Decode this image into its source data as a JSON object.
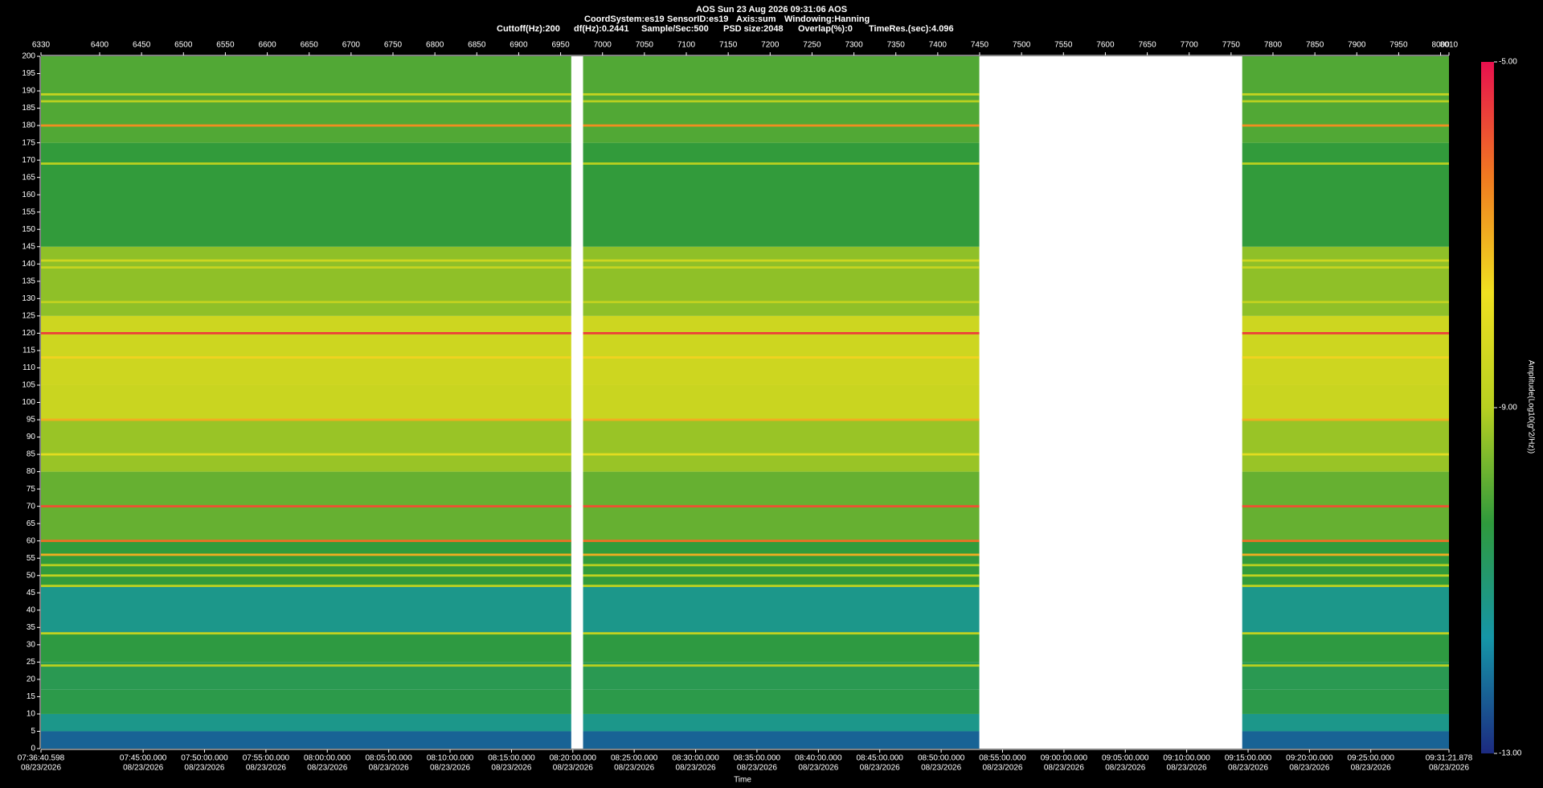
{
  "chart_data": {
    "type": "spectrogram",
    "title": "AOS  Sun 23 Aug 2026 09:31:06  AOS",
    "info_line_1": [
      "CoordSystem:es19",
      "SensorID:es19",
      "Axis:sum",
      "Windowing:Hanning"
    ],
    "info_line_2": [
      "Cuttoff(Hz):200",
      "df(Hz):0.2441",
      "Sample/Sec:500",
      "PSD size:2048",
      "Overlap(%):0",
      "TimeRes.(sec):4.096"
    ],
    "xlabel": "Time",
    "colorbar_label": "Amplitude(Log10(g^2/Hz))",
    "xlim": [
      6330,
      8010
    ],
    "xticks": [
      6330,
      6400,
      6450,
      6500,
      6550,
      6600,
      6650,
      6700,
      6750,
      6800,
      6850,
      6900,
      6950,
      7000,
      7050,
      7100,
      7150,
      7200,
      7250,
      7300,
      7350,
      7400,
      7450,
      7500,
      7550,
      7600,
      7650,
      7700,
      7750,
      7800,
      7850,
      7900,
      7950,
      8000,
      8010
    ],
    "time_date": "08/23/2026",
    "time_ticks": [
      {
        "value": 6330,
        "label": "07:36:40.598"
      },
      {
        "value": 6451.9,
        "label": "07:45:00.000"
      },
      {
        "value": 6525.1,
        "label": "07:50:00.000"
      },
      {
        "value": 6598.4,
        "label": "07:55:00.000"
      },
      {
        "value": 6671.6,
        "label": "08:00:00.000"
      },
      {
        "value": 6744.9,
        "label": "08:05:00.000"
      },
      {
        "value": 6818.1,
        "label": "08:10:00.000"
      },
      {
        "value": 6891.4,
        "label": "08:15:00.000"
      },
      {
        "value": 6964.6,
        "label": "08:20:00.000"
      },
      {
        "value": 7037.8,
        "label": "08:25:00.000"
      },
      {
        "value": 7111.1,
        "label": "08:30:00.000"
      },
      {
        "value": 7184.3,
        "label": "08:35:00.000"
      },
      {
        "value": 7257.6,
        "label": "08:40:00.000"
      },
      {
        "value": 7330.8,
        "label": "08:45:00.000"
      },
      {
        "value": 7404.1,
        "label": "08:50:00.000"
      },
      {
        "value": 7477.3,
        "label": "08:55:00.000"
      },
      {
        "value": 7550.6,
        "label": "09:00:00.000"
      },
      {
        "value": 7623.8,
        "label": "09:05:00.000"
      },
      {
        "value": 7697.0,
        "label": "09:10:00.000"
      },
      {
        "value": 7770.3,
        "label": "09:15:00.000"
      },
      {
        "value": 7843.5,
        "label": "09:20:00.000"
      },
      {
        "value": 7916.7,
        "label": "09:25:00.000"
      },
      {
        "value": 8010,
        "label": "09:31:21.878"
      }
    ],
    "ylim": [
      0,
      200
    ],
    "yticks": [
      0,
      5,
      10,
      15,
      20,
      25,
      30,
      35,
      40,
      45,
      50,
      55,
      60,
      65,
      70,
      75,
      80,
      85,
      90,
      95,
      100,
      105,
      110,
      115,
      120,
      125,
      130,
      135,
      140,
      145,
      150,
      155,
      160,
      165,
      170,
      175,
      180,
      185,
      190,
      195,
      200
    ],
    "clim": [
      -13,
      -5
    ],
    "cticks": [
      {
        "value": -13,
        "label": "-13.00"
      },
      {
        "value": -9,
        "label": "-9.00"
      },
      {
        "value": -5,
        "label": "-5.00"
      }
    ],
    "colormap": [
      "#1c2a80",
      "#1596a8",
      "#2f9a3c",
      "#b8d020",
      "#f0e020",
      "#f07a20",
      "#e8104e"
    ],
    "segments": [
      [
        6330,
        6962.7
      ],
      [
        6976.8,
        7449.6
      ],
      [
        7763.3,
        8010
      ]
    ],
    "freq_bins": [
      0,
      5,
      10,
      17,
      25,
      33,
      47,
      60,
      80,
      95,
      105,
      125,
      145,
      175,
      200
    ],
    "amplitude": [
      -12.3,
      -11.3,
      -10.5,
      -10.6,
      -10.4,
      -11.3,
      -10.3,
      -9.8,
      -9.3,
      -8.6,
      -8.5,
      -9.4,
      -10.3,
      -10.0
    ],
    "tones": {
      "freq": [
        24,
        33.3,
        47,
        50,
        53,
        56,
        60,
        70,
        85,
        95,
        113,
        120,
        129,
        139,
        141,
        169,
        180,
        187,
        189
      ],
      "amplitude": [
        -9,
        -8.8,
        -8.8,
        -8.8,
        -9,
        -7,
        -6.2,
        -5.8,
        -8,
        -7,
        -7.5,
        -5.6,
        -8.8,
        -8.7,
        -8.5,
        -9,
        -6.6,
        -9,
        -8.7
      ]
    }
  }
}
